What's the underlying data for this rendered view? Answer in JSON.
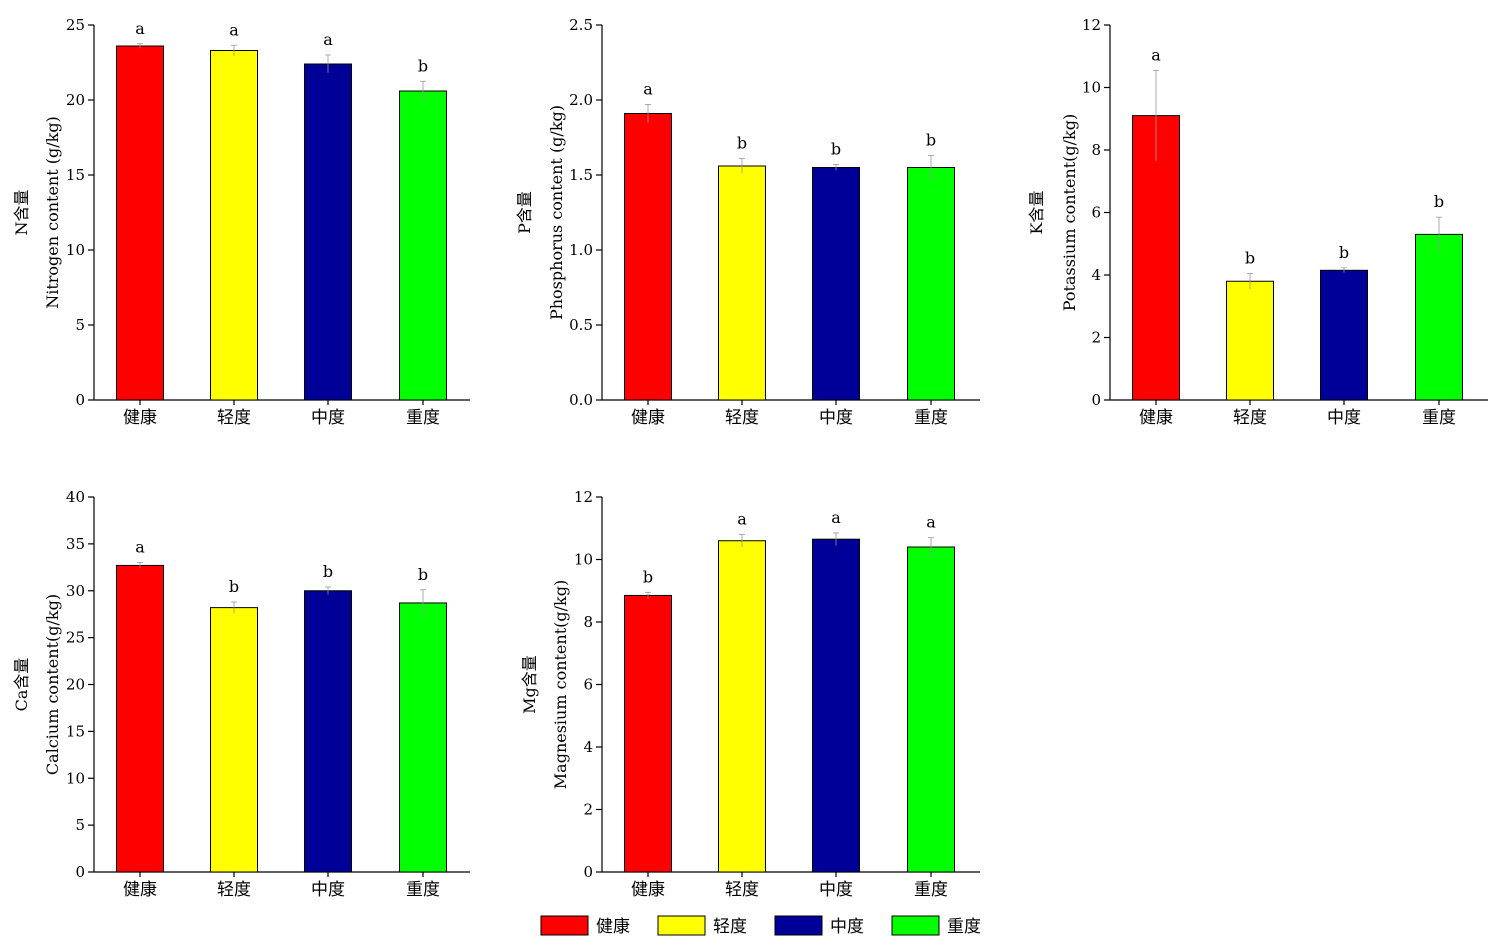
{
  "legend": [
    {
      "label": "健康",
      "color": "#ff0000"
    },
    {
      "label": "轻度",
      "color": "#ffff00"
    },
    {
      "label": "中度",
      "color": "#000099"
    },
    {
      "label": "重度",
      "color": "#00ff00"
    }
  ],
  "chart_data": [
    {
      "type": "bar",
      "categories": [
        "健康",
        "轻度",
        "中度",
        "重度"
      ],
      "values": [
        23.6,
        23.3,
        22.4,
        20.6
      ],
      "errors": [
        0.15,
        0.35,
        0.6,
        0.65
      ],
      "significance": [
        "a",
        "a",
        "a",
        "b"
      ],
      "ylabel_top": "N含量",
      "ylabel": "Nitrogen content (g/kg)",
      "ylim": [
        0,
        25
      ],
      "yticks": [
        "0",
        "5",
        "10",
        "15",
        "20",
        "25"
      ],
      "colors": [
        "#ff0000",
        "#ffff00",
        "#000099",
        "#00ff00"
      ]
    },
    {
      "type": "bar",
      "categories": [
        "健康",
        "轻度",
        "中度",
        "重度"
      ],
      "values": [
        1.91,
        1.56,
        1.55,
        1.55
      ],
      "errors": [
        0.06,
        0.05,
        0.02,
        0.08
      ],
      "significance": [
        "a",
        "b",
        "b",
        "b"
      ],
      "ylabel_top": "P含量",
      "ylabel": "Phosphorus content (g/kg)",
      "ylim": [
        0,
        2.5
      ],
      "yticks": [
        "0.0",
        "0.5",
        "1.0",
        "1.5",
        "2.0",
        "2.5"
      ],
      "colors": [
        "#ff0000",
        "#ffff00",
        "#000099",
        "#00ff00"
      ]
    },
    {
      "type": "bar",
      "categories": [
        "健康",
        "轻度",
        "中度",
        "重度"
      ],
      "values": [
        9.1,
        3.8,
        4.15,
        5.3
      ],
      "errors": [
        1.45,
        0.25,
        0.08,
        0.55
      ],
      "significance": [
        "a",
        "b",
        "b",
        "b"
      ],
      "ylabel_top": "K含量",
      "ylabel": "Potassium content(g/kg)",
      "ylim": [
        0,
        12
      ],
      "yticks": [
        "0",
        "2",
        "4",
        "6",
        "8",
        "10",
        "12"
      ],
      "colors": [
        "#ff0000",
        "#ffff00",
        "#000099",
        "#00ff00"
      ]
    },
    {
      "type": "bar",
      "categories": [
        "健康",
        "轻度",
        "中度",
        "重度"
      ],
      "values": [
        32.7,
        28.2,
        30.0,
        28.7
      ],
      "errors": [
        0.3,
        0.6,
        0.4,
        1.4
      ],
      "significance": [
        "a",
        "b",
        "b",
        "b"
      ],
      "ylabel_top": "Ca含量",
      "ylabel": "Calcium content(g/kg)",
      "ylim": [
        0,
        40
      ],
      "yticks": [
        "0",
        "5",
        "10",
        "15",
        "20",
        "25",
        "30",
        "35",
        "40"
      ],
      "colors": [
        "#ff0000",
        "#ffff00",
        "#000099",
        "#00ff00"
      ]
    },
    {
      "type": "bar",
      "categories": [
        "健康",
        "轻度",
        "中度",
        "重度"
      ],
      "values": [
        8.85,
        10.6,
        10.65,
        10.4
      ],
      "errors": [
        0.1,
        0.2,
        0.2,
        0.3
      ],
      "significance": [
        "b",
        "a",
        "a",
        "a"
      ],
      "ylabel_top": "Mg含量",
      "ylabel": "Magnesium content(g/kg)",
      "ylim": [
        0,
        12
      ],
      "yticks": [
        "0",
        "2",
        "4",
        "6",
        "8",
        "10",
        "12"
      ],
      "colors": [
        "#ff0000",
        "#ffff00",
        "#000099",
        "#00ff00"
      ]
    }
  ]
}
